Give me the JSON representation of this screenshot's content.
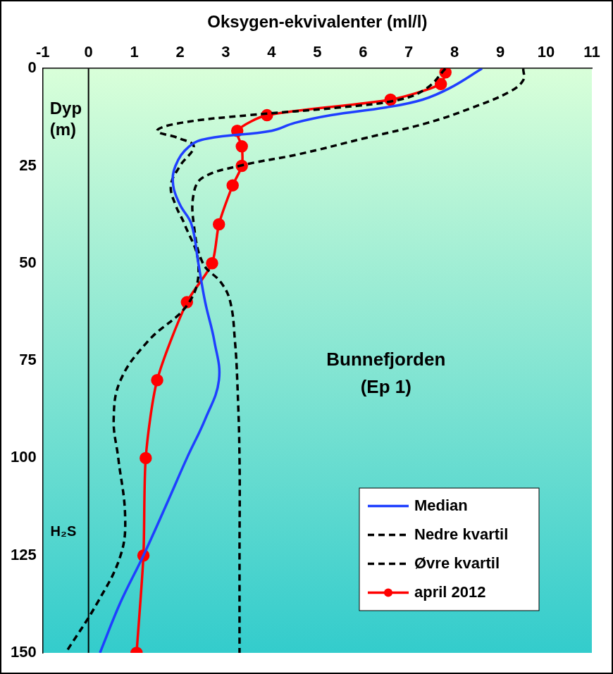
{
  "chart_data": {
    "type": "line",
    "x_label": "Oksygen-ekvivalenter (ml/l)",
    "y_label": "Dyp (m)",
    "xlim": [
      -1,
      11
    ],
    "xticks": [
      -1,
      0,
      1,
      2,
      3,
      4,
      5,
      6,
      7,
      8,
      9,
      10,
      11
    ],
    "ylim": [
      0,
      150
    ],
    "yticks": [
      0,
      25,
      50,
      75,
      100,
      125,
      150
    ],
    "grid": false,
    "legend": "lower right",
    "reference_lines": [
      {
        "x": 0
      }
    ],
    "annotations": [
      {
        "text": "H₂S",
        "x": -0.55,
        "y": 119
      },
      {
        "text": "Bunnefjorden",
        "x": 6.5,
        "y": 75
      },
      {
        "text": "(Ep 1)",
        "x": 6.5,
        "y": 82
      }
    ],
    "series": [
      {
        "name": "Median",
        "color": "#1f3fff",
        "line_style": "solid",
        "marker": "none",
        "x": [
          8.6,
          7.9,
          7.3,
          6.5,
          5.3,
          4.5,
          4.0,
          2.6,
          2.2,
          1.9,
          1.85,
          2.0,
          2.25,
          2.4,
          2.55,
          2.75,
          2.85,
          2.55,
          2.15,
          1.7,
          1.2,
          0.7,
          0.25
        ],
        "y": [
          0,
          5,
          8,
          10,
          12,
          14,
          16,
          18,
          20,
          25,
          30,
          35,
          40,
          50,
          60,
          70,
          80,
          90,
          100,
          112,
          125,
          137,
          150
        ]
      },
      {
        "name": "Nedre kvartil",
        "color": "#000000",
        "line_style": "dashed",
        "marker": "none",
        "x": [
          7.8,
          7.4,
          6.8,
          5.5,
          3.5,
          2.0,
          1.5,
          2.0,
          2.3,
          2.0,
          1.8,
          1.9,
          2.1,
          2.4,
          2.2,
          1.3,
          0.7,
          0.55,
          0.65,
          0.8,
          0.7,
          0.2,
          -0.5
        ],
        "y": [
          0,
          5,
          8,
          10,
          12,
          14,
          16,
          18,
          20,
          25,
          30,
          35,
          40,
          50,
          60,
          70,
          80,
          90,
          100,
          115,
          125,
          137,
          150
        ]
      },
      {
        "name": "Øvre kvartil",
        "color": "#000000",
        "line_style": "dashed",
        "marker": "none",
        "x": [
          9.5,
          9.5,
          9.2,
          8.4,
          7.4,
          6.0,
          4.6,
          3.3,
          2.5,
          2.3,
          2.3,
          2.5,
          2.9,
          3.1,
          3.2,
          3.25,
          3.3,
          3.3,
          3.3
        ],
        "y": [
          0,
          3,
          6,
          10,
          14,
          18,
          22,
          25,
          28,
          32,
          40,
          50,
          55,
          60,
          70,
          80,
          100,
          125,
          150
        ]
      },
      {
        "name": "april 2012",
        "color": "#ff0000",
        "line_style": "solid",
        "marker": "circle",
        "x": [
          7.8,
          7.7,
          6.6,
          3.9,
          3.25,
          3.35,
          3.35,
          3.15,
          2.85,
          2.7,
          2.15,
          1.5,
          1.25,
          1.2,
          1.05
        ],
        "y": [
          1,
          4,
          8,
          12,
          16,
          20,
          25,
          30,
          40,
          50,
          60,
          80,
          100,
          125,
          150
        ]
      }
    ]
  }
}
